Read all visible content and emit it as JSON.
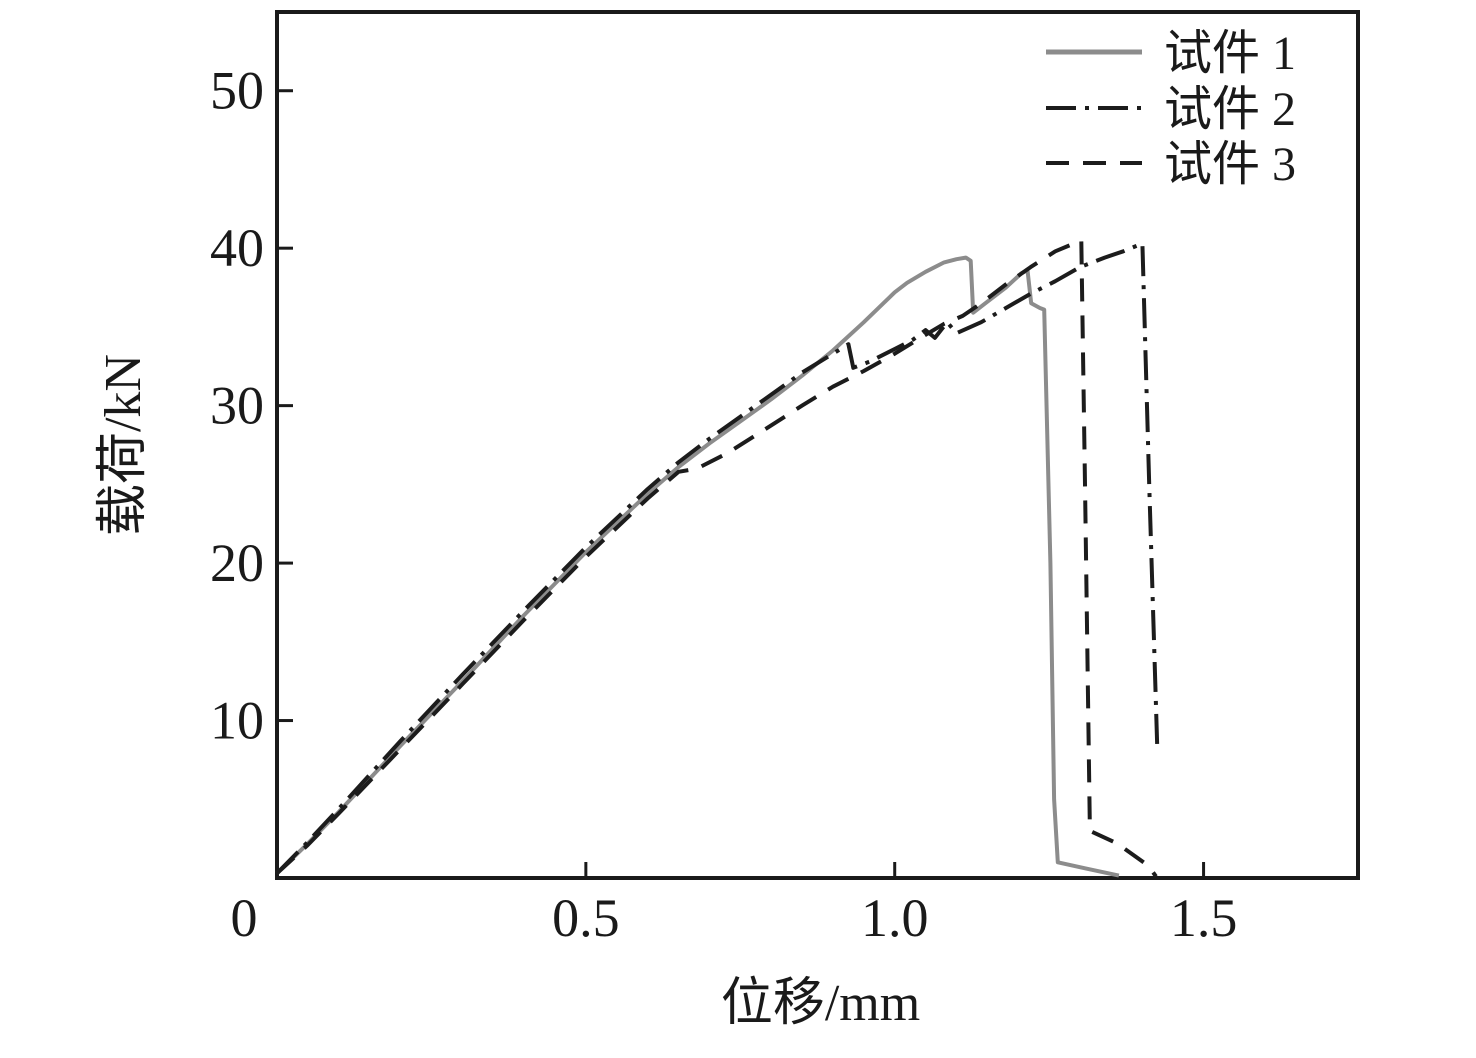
{
  "figure": {
    "type": "scientific-line-chart",
    "background": "#ffffff",
    "frame_color": "#1a1a1a",
    "text_color": "#1a1a1a"
  },
  "chart_data": {
    "type": "line",
    "title": "",
    "xlabel": "位移/mm",
    "ylabel": "载荷/kN",
    "xlim": [
      0,
      1.75
    ],
    "ylim": [
      0,
      55
    ],
    "grid": false,
    "legend_position": "top-right",
    "xticks": [
      {
        "value": 0,
        "label": "0"
      },
      {
        "value": 0.5,
        "label": "0.5"
      },
      {
        "value": 1.0,
        "label": "1.0"
      },
      {
        "value": 1.5,
        "label": "1.5"
      }
    ],
    "yticks": [
      {
        "value": 10,
        "label": "10"
      },
      {
        "value": 20,
        "label": "20"
      },
      {
        "value": 30,
        "label": "30"
      },
      {
        "value": 40,
        "label": "40"
      },
      {
        "value": 50,
        "label": "50"
      }
    ],
    "series": [
      {
        "name": "试件 1",
        "line_style": "solid",
        "color": "#8c8c8c",
        "peak_load_kN": 39.4,
        "points": [
          [
            0,
            0.3
          ],
          [
            0.05,
            2.2
          ],
          [
            0.1,
            4.2
          ],
          [
            0.2,
            8.4
          ],
          [
            0.3,
            12.5
          ],
          [
            0.4,
            16.7
          ],
          [
            0.5,
            20.7
          ],
          [
            0.6,
            24.4
          ],
          [
            0.65,
            26.1
          ],
          [
            0.7,
            27.6
          ],
          [
            0.75,
            29.0
          ],
          [
            0.8,
            30.4
          ],
          [
            0.85,
            31.9
          ],
          [
            0.9,
            33.5
          ],
          [
            0.95,
            35.3
          ],
          [
            1.0,
            37.2
          ],
          [
            1.02,
            37.8
          ],
          [
            1.05,
            38.5
          ],
          [
            1.08,
            39.1
          ],
          [
            1.1,
            39.3
          ],
          [
            1.115,
            39.4
          ],
          [
            1.123,
            39.2
          ],
          [
            1.127,
            35.9
          ],
          [
            1.15,
            36.6
          ],
          [
            1.18,
            37.5
          ],
          [
            1.205,
            38.4
          ],
          [
            1.215,
            38.6
          ],
          [
            1.221,
            36.5
          ],
          [
            1.235,
            36.2
          ],
          [
            1.242,
            36.1
          ],
          [
            1.252,
            20
          ],
          [
            1.258,
            5
          ],
          [
            1.264,
            1.0
          ],
          [
            1.31,
            0.6
          ],
          [
            1.363,
            0.15
          ]
        ]
      },
      {
        "name": "试件 2",
        "line_style": "dash-dot",
        "color": "#1c1c1c",
        "peak_load_kN": 40.3,
        "points": [
          [
            0,
            0.3
          ],
          [
            0.05,
            2.3
          ],
          [
            0.1,
            4.4
          ],
          [
            0.2,
            8.7
          ],
          [
            0.3,
            12.9
          ],
          [
            0.4,
            17.0
          ],
          [
            0.5,
            21.0
          ],
          [
            0.6,
            24.7
          ],
          [
            0.65,
            26.4
          ],
          [
            0.7,
            27.9
          ],
          [
            0.75,
            29.3
          ],
          [
            0.8,
            30.7
          ],
          [
            0.85,
            32.1
          ],
          [
            0.9,
            33.3
          ],
          [
            0.925,
            33.9
          ],
          [
            0.933,
            32.4
          ],
          [
            0.96,
            32.8
          ],
          [
            1.0,
            33.6
          ],
          [
            1.03,
            34.2
          ],
          [
            1.05,
            34.8
          ],
          [
            1.065,
            34.3
          ],
          [
            1.085,
            35.3
          ],
          [
            1.1,
            34.6
          ],
          [
            1.14,
            35.3
          ],
          [
            1.18,
            36.2
          ],
          [
            1.22,
            37.1
          ],
          [
            1.26,
            37.9
          ],
          [
            1.3,
            38.8
          ],
          [
            1.34,
            39.4
          ],
          [
            1.37,
            39.8
          ],
          [
            1.395,
            40.2
          ],
          [
            1.401,
            40.3
          ],
          [
            1.412,
            25
          ],
          [
            1.425,
            8.4
          ]
        ]
      },
      {
        "name": "试件 3",
        "line_style": "dashed",
        "color": "#1c1c1c",
        "peak_load_kN": 40.5,
        "points": [
          [
            0,
            0.3
          ],
          [
            0.05,
            2.1
          ],
          [
            0.1,
            4.1
          ],
          [
            0.2,
            8.2
          ],
          [
            0.3,
            12.3
          ],
          [
            0.4,
            16.4
          ],
          [
            0.5,
            20.4
          ],
          [
            0.6,
            24.1
          ],
          [
            0.65,
            25.8
          ],
          [
            0.68,
            26.0
          ],
          [
            0.73,
            27.0
          ],
          [
            0.79,
            28.5
          ],
          [
            0.85,
            30.0
          ],
          [
            0.9,
            31.2
          ],
          [
            0.95,
            32.2
          ],
          [
            1.0,
            33.3
          ],
          [
            1.05,
            34.5
          ],
          [
            1.08,
            35.2
          ],
          [
            1.11,
            35.7
          ],
          [
            1.14,
            36.5
          ],
          [
            1.18,
            37.7
          ],
          [
            1.22,
            38.8
          ],
          [
            1.26,
            39.8
          ],
          [
            1.29,
            40.3
          ],
          [
            1.302,
            40.5
          ],
          [
            1.308,
            25
          ],
          [
            1.316,
            3.0
          ],
          [
            1.36,
            2.2
          ],
          [
            1.41,
            0.8
          ],
          [
            1.423,
            0.1
          ]
        ]
      }
    ]
  }
}
